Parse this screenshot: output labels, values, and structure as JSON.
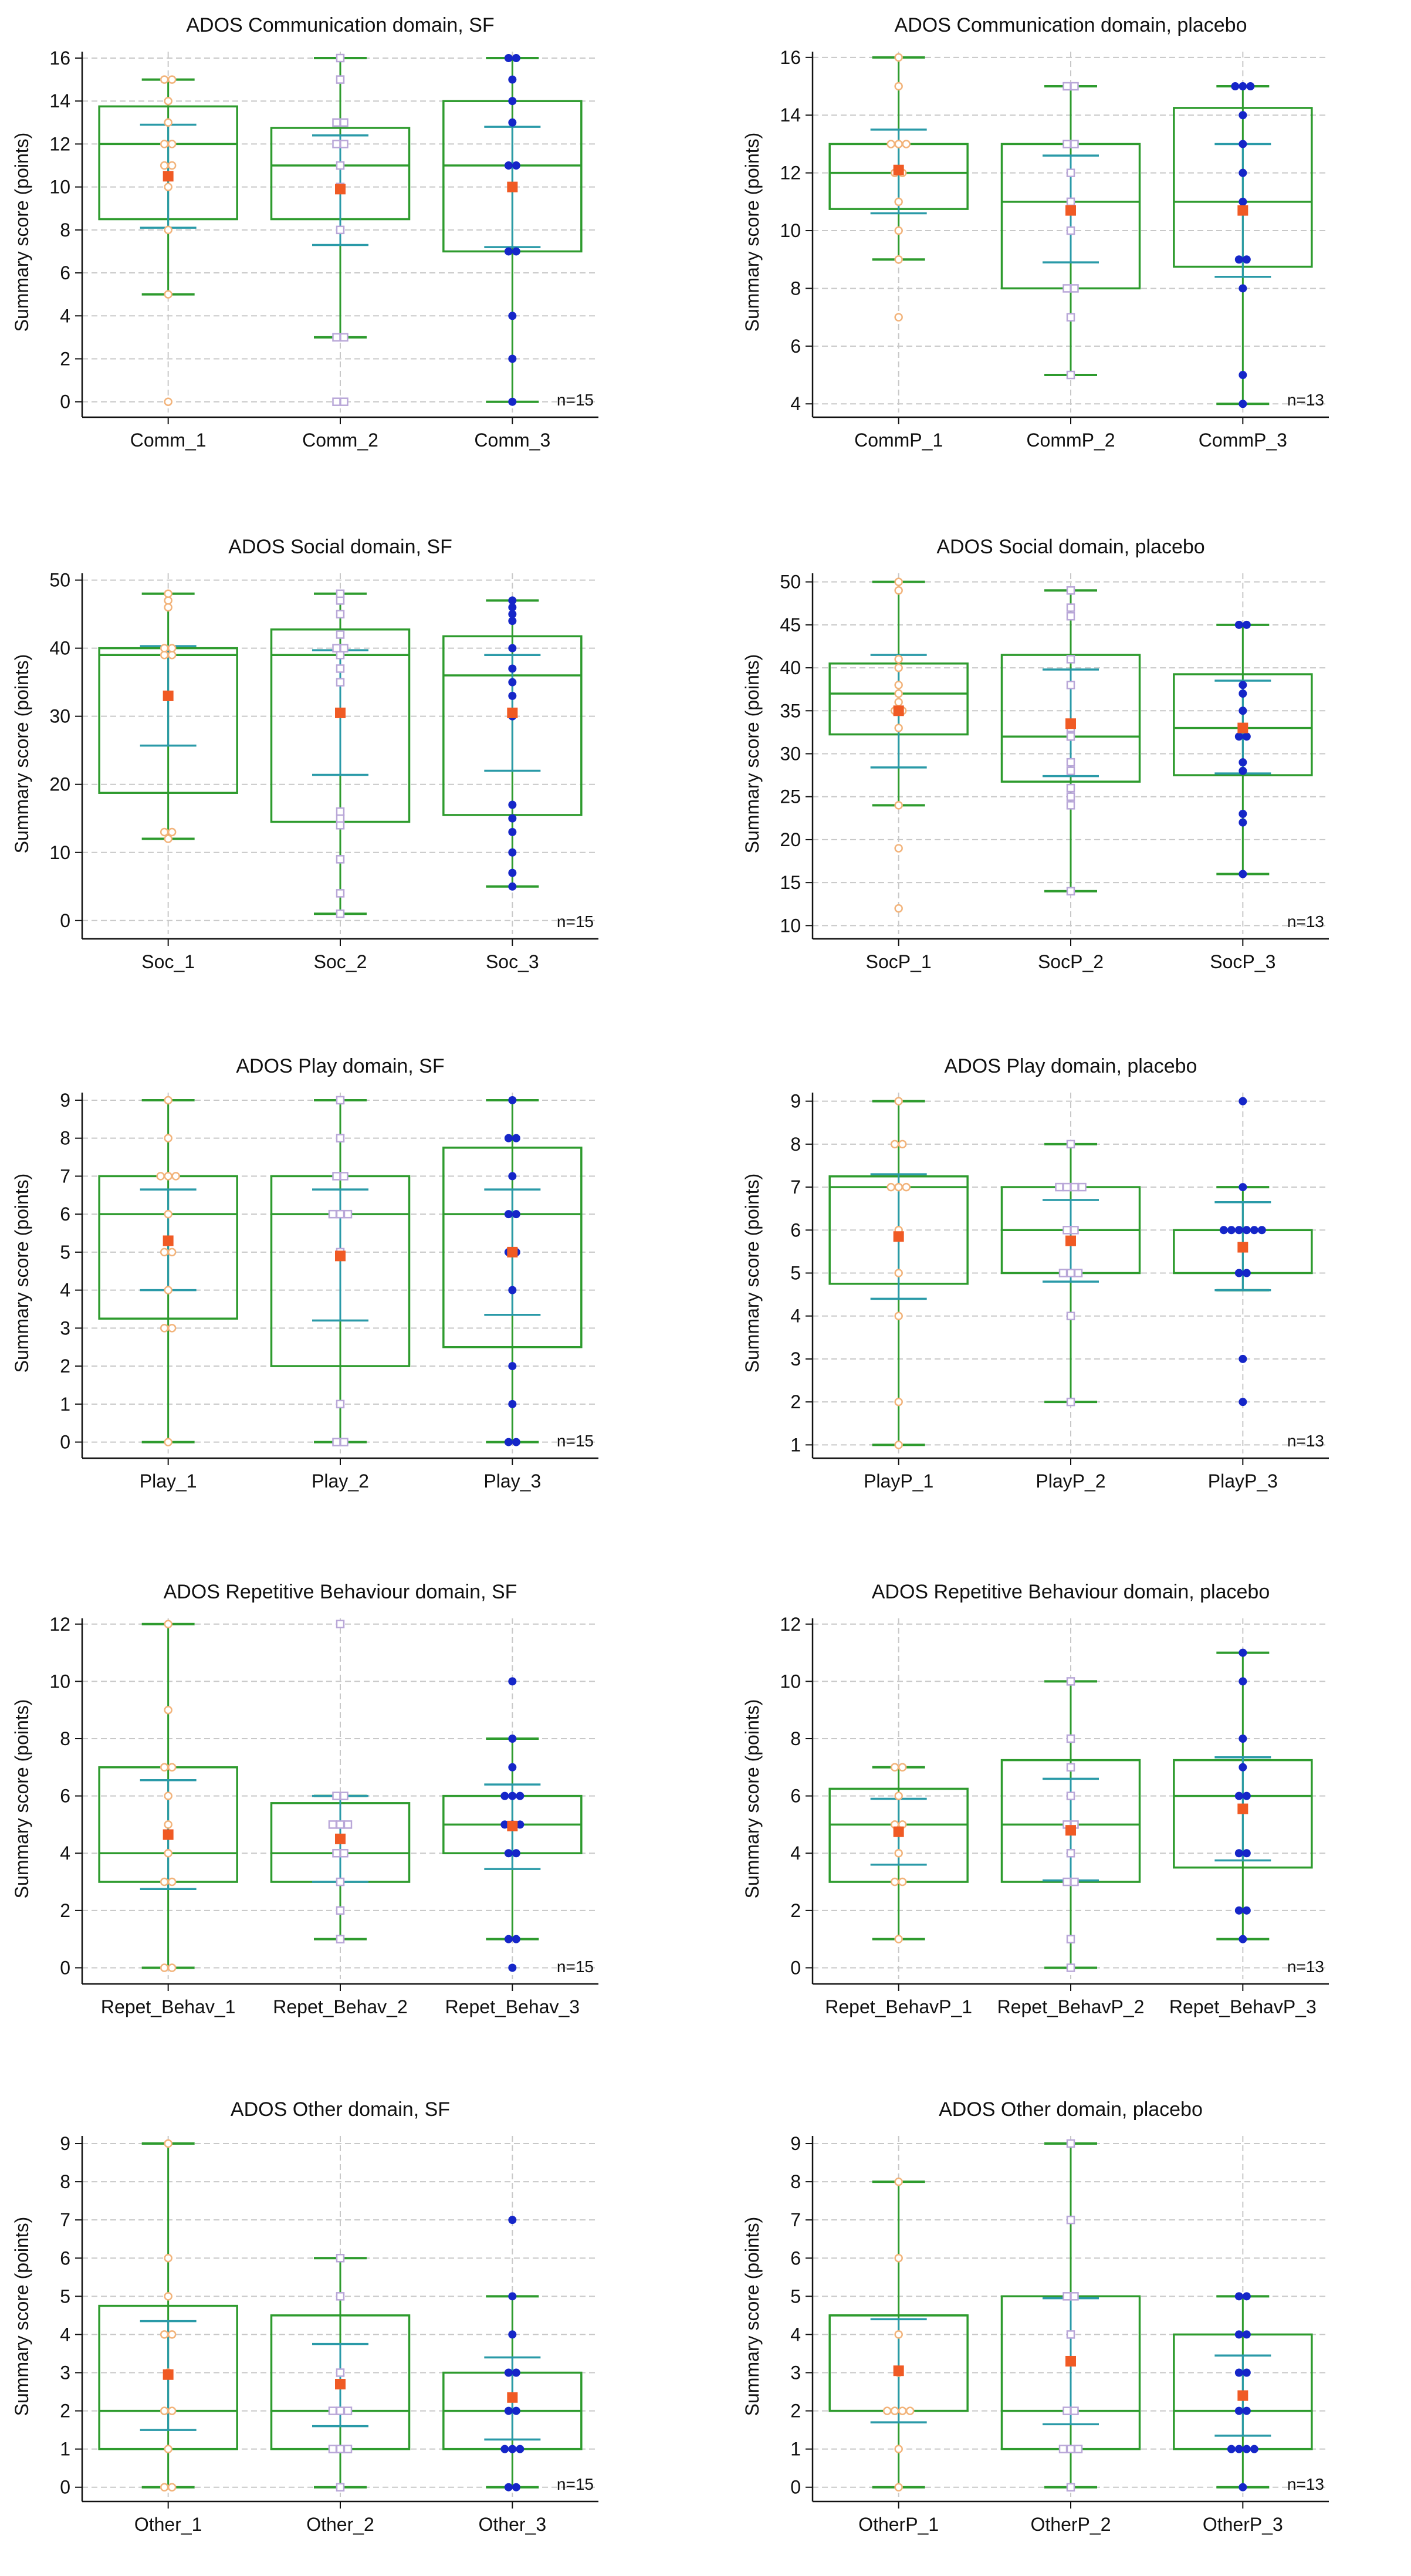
{
  "figure": {
    "ylabel": "Summary score (points)",
    "colors": {
      "box": "#2e9b2e",
      "sd": "#2a9aa8",
      "mean": "#f05a24",
      "grid": "#c8c8c8",
      "axis": "#111111",
      "pt1": "#f2b37a",
      "pt2": "#b9a7d8",
      "pt3": "#1526c8"
    }
  },
  "chart_data": [
    {
      "type": "box",
      "title": "ADOS Communication domain, SF",
      "ylabel": "Summary score (points)",
      "ylim": [
        -0.5,
        16.3
      ],
      "yticks": [
        0,
        2,
        4,
        6,
        8,
        10,
        12,
        14,
        16
      ],
      "n_label": "n=15",
      "categories": [
        "Comm_1",
        "Comm_2",
        "Comm_3"
      ],
      "series": [
        {
          "name": "Comm_1",
          "min": 5,
          "q1": 8.5,
          "median": 12,
          "q3": 13.75,
          "max": 15,
          "mean": 10.5,
          "sd_low": 8.1,
          "sd_high": 12.9,
          "points": [
            0,
            5,
            8,
            10,
            11,
            11,
            12,
            12,
            13,
            14,
            15,
            15
          ]
        },
        {
          "name": "Comm_2",
          "min": 3,
          "q1": 8.5,
          "median": 11,
          "q3": 12.75,
          "max": 16,
          "mean": 9.9,
          "sd_low": 7.3,
          "sd_high": 12.4,
          "points": [
            0,
            0,
            3,
            3,
            8,
            10,
            11,
            12,
            12,
            13,
            13,
            15,
            16
          ]
        },
        {
          "name": "Comm_3",
          "min": 0,
          "q1": 7,
          "median": 11,
          "q3": 14,
          "max": 16,
          "mean": 10,
          "sd_low": 7.2,
          "sd_high": 12.8,
          "points": [
            0,
            2,
            4,
            7,
            7,
            10,
            11,
            11,
            13,
            14,
            15,
            16,
            16
          ]
        }
      ]
    },
    {
      "type": "box",
      "title": "ADOS Communication domain, placebo",
      "ylabel": "Summary score (points)",
      "ylim": [
        3.7,
        16.2
      ],
      "yticks": [
        4,
        6,
        8,
        10,
        12,
        14,
        16
      ],
      "n_label": "n=13",
      "categories": [
        "CommP_1",
        "CommP_2",
        "CommP_3"
      ],
      "series": [
        {
          "name": "CommP_1",
          "min": 9,
          "q1": 10.75,
          "median": 12,
          "q3": 13,
          "max": 16,
          "mean": 12.1,
          "sd_low": 10.6,
          "sd_high": 13.5,
          "points": [
            7,
            9,
            10,
            11,
            12,
            12,
            13,
            13,
            13,
            15,
            16
          ]
        },
        {
          "name": "CommP_2",
          "min": 5,
          "q1": 8,
          "median": 11,
          "q3": 13,
          "max": 15,
          "mean": 10.7,
          "sd_low": 8.9,
          "sd_high": 12.6,
          "points": [
            5,
            7,
            8,
            8,
            10,
            11,
            12,
            13,
            13,
            15,
            15
          ]
        },
        {
          "name": "CommP_3",
          "min": 4,
          "q1": 8.75,
          "median": 11,
          "q3": 14.25,
          "max": 15,
          "mean": 10.7,
          "sd_low": 8.4,
          "sd_high": 13,
          "points": [
            4,
            5,
            8,
            9,
            9,
            11,
            12,
            13,
            14,
            15,
            15,
            15
          ]
        }
      ]
    },
    {
      "type": "box",
      "title": "ADOS Social domain, SF",
      "ylabel": "Summary score (points)",
      "ylim": [
        -2,
        51
      ],
      "yticks": [
        0,
        10,
        20,
        30,
        40,
        50
      ],
      "n_label": "n=15",
      "categories": [
        "Soc_1",
        "Soc_2",
        "Soc_3"
      ],
      "series": [
        {
          "name": "Soc_1",
          "min": 12,
          "q1": 18.75,
          "median": 39,
          "q3": 40,
          "max": 48,
          "mean": 33,
          "sd_low": 25.7,
          "sd_high": 40.3,
          "points": [
            12,
            13,
            13,
            33,
            39,
            39,
            40,
            40,
            46,
            47,
            48
          ]
        },
        {
          "name": "Soc_2",
          "min": 1,
          "q1": 14.5,
          "median": 39,
          "q3": 42.75,
          "max": 48,
          "mean": 30.5,
          "sd_low": 21.4,
          "sd_high": 39.7,
          "points": [
            1,
            4,
            9,
            14,
            15,
            16,
            35,
            37,
            39,
            40,
            40,
            42,
            45,
            47,
            48
          ]
        },
        {
          "name": "Soc_3",
          "min": 5,
          "q1": 15.5,
          "median": 36,
          "q3": 41.75,
          "max": 47,
          "mean": 30.5,
          "sd_low": 22,
          "sd_high": 39,
          "points": [
            5,
            7,
            10,
            13,
            15,
            17,
            30,
            33,
            35,
            37,
            40,
            44,
            45,
            46,
            47
          ]
        }
      ]
    },
    {
      "type": "box",
      "title": "ADOS Social domain, placebo",
      "ylabel": "Summary score (points)",
      "ylim": [
        9,
        51
      ],
      "yticks": [
        10,
        15,
        20,
        25,
        30,
        35,
        40,
        45,
        50
      ],
      "n_label": "n=13",
      "categories": [
        "SocP_1",
        "SocP_2",
        "SocP_3"
      ],
      "series": [
        {
          "name": "SocP_1",
          "min": 24,
          "q1": 32.25,
          "median": 37,
          "q3": 40.5,
          "max": 50,
          "mean": 35,
          "sd_low": 28.4,
          "sd_high": 41.5,
          "points": [
            12,
            19,
            24,
            33,
            35,
            35,
            36,
            37,
            38,
            40,
            41,
            49,
            50
          ]
        },
        {
          "name": "SocP_2",
          "min": 14,
          "q1": 26.75,
          "median": 32,
          "q3": 41.5,
          "max": 49,
          "mean": 33.5,
          "sd_low": 27.4,
          "sd_high": 39.8,
          "points": [
            14,
            24,
            25,
            26,
            28,
            29,
            32,
            33,
            38,
            41,
            46,
            47,
            49
          ]
        },
        {
          "name": "SocP_3",
          "min": 16,
          "q1": 27.5,
          "median": 33,
          "q3": 39.25,
          "max": 45,
          "mean": 33,
          "sd_low": 27.7,
          "sd_high": 38.5,
          "points": [
            16,
            22,
            23,
            28,
            29,
            32,
            32,
            33,
            35,
            37,
            38,
            45,
            45
          ]
        }
      ]
    },
    {
      "type": "box",
      "title": "ADOS Play domain, SF",
      "ylabel": "Summary score (points)",
      "ylim": [
        -0.3,
        9.2
      ],
      "yticks": [
        0,
        1,
        2,
        3,
        4,
        5,
        6,
        7,
        8,
        9
      ],
      "n_label": "n=15",
      "categories": [
        "Play_1",
        "Play_2",
        "Play_3"
      ],
      "series": [
        {
          "name": "Play_1",
          "min": 0,
          "q1": 3.25,
          "median": 6,
          "q3": 7,
          "max": 9,
          "mean": 5.3,
          "sd_low": 4,
          "sd_high": 6.65,
          "points": [
            0,
            3,
            3,
            4,
            5,
            5,
            6,
            7,
            7,
            7,
            8,
            9
          ]
        },
        {
          "name": "Play_2",
          "min": 0,
          "q1": 2,
          "median": 6,
          "q3": 7,
          "max": 9,
          "mean": 4.9,
          "sd_low": 3.2,
          "sd_high": 6.65,
          "points": [
            0,
            0,
            1,
            5,
            6,
            6,
            6,
            7,
            7,
            8,
            9
          ]
        },
        {
          "name": "Play_3",
          "min": 0,
          "q1": 2.5,
          "median": 6,
          "q3": 7.75,
          "max": 9,
          "mean": 5,
          "sd_low": 3.35,
          "sd_high": 6.65,
          "points": [
            0,
            0,
            1,
            2,
            4,
            5,
            5,
            6,
            6,
            7,
            8,
            8,
            9
          ]
        }
      ]
    },
    {
      "type": "box",
      "title": "ADOS Play domain, placebo",
      "ylabel": "Summary score (points)",
      "ylim": [
        0.8,
        9.2
      ],
      "yticks": [
        1,
        2,
        3,
        4,
        5,
        6,
        7,
        8,
        9
      ],
      "n_label": "n=13",
      "categories": [
        "PlayP_1",
        "PlayP_2",
        "PlayP_3"
      ],
      "series": [
        {
          "name": "PlayP_1",
          "min": 1,
          "q1": 4.75,
          "median": 7,
          "q3": 7.25,
          "max": 9,
          "mean": 5.85,
          "sd_low": 4.4,
          "sd_high": 7.3,
          "points": [
            1,
            2,
            4,
            5,
            6,
            7,
            7,
            7,
            8,
            8,
            9
          ]
        },
        {
          "name": "PlayP_2",
          "min": 2,
          "q1": 5,
          "median": 6,
          "q3": 7,
          "max": 8,
          "mean": 5.75,
          "sd_low": 4.8,
          "sd_high": 6.7,
          "points": [
            2,
            4,
            5,
            5,
            5,
            6,
            6,
            7,
            7,
            7,
            7,
            8
          ]
        },
        {
          "name": "PlayP_3",
          "min": 4.6,
          "q1": 5,
          "median": 6,
          "q3": 6,
          "max": 7,
          "mean": 5.6,
          "sd_low": 4.6,
          "sd_high": 6.65,
          "points": [
            2,
            3,
            5,
            5,
            6,
            6,
            6,
            6,
            6,
            6,
            7,
            9
          ]
        }
      ]
    },
    {
      "type": "box",
      "title": "ADOS Repetitive Behaviour domain, SF",
      "ylabel": "Summary score (points)",
      "ylim": [
        -0.4,
        12.2
      ],
      "yticks": [
        0,
        2,
        4,
        6,
        8,
        10,
        12
      ],
      "n_label": "n=15",
      "categories": [
        "Repet_Behav_1",
        "Repet_Behav_2",
        "Repet_Behav_3"
      ],
      "series": [
        {
          "name": "Repet_Behav_1",
          "min": 0,
          "q1": 3,
          "median": 4,
          "q3": 7,
          "max": 12,
          "mean": 4.65,
          "sd_low": 2.75,
          "sd_high": 6.55,
          "points": [
            0,
            0,
            3,
            3,
            4,
            5,
            6,
            7,
            7,
            9,
            12
          ]
        },
        {
          "name": "Repet_Behav_2",
          "min": 1,
          "q1": 3,
          "median": 4,
          "q3": 5.75,
          "max": 6,
          "mean": 4.5,
          "sd_low": 3,
          "sd_high": 6,
          "points": [
            1,
            2,
            3,
            4,
            4,
            5,
            5,
            5,
            6,
            6,
            12
          ]
        },
        {
          "name": "Repet_Behav_3",
          "min": 1,
          "q1": 4,
          "median": 5,
          "q3": 6,
          "max": 8,
          "mean": 4.95,
          "sd_low": 3.45,
          "sd_high": 6.4,
          "points": [
            0,
            1,
            1,
            4,
            4,
            5,
            5,
            5,
            6,
            6,
            6,
            7,
            8,
            10
          ]
        }
      ]
    },
    {
      "type": "box",
      "title": "ADOS Repetitive Behaviour domain, placebo",
      "ylabel": "Summary score (points)",
      "ylim": [
        -0.4,
        12.2
      ],
      "yticks": [
        0,
        2,
        4,
        6,
        8,
        10,
        12
      ],
      "n_label": "n=13",
      "categories": [
        "Repet_BehavP_1",
        "Repet_BehavP_2",
        "Repet_BehavP_3"
      ],
      "series": [
        {
          "name": "Repet_BehavP_1",
          "min": 1,
          "q1": 3,
          "median": 5,
          "q3": 6.25,
          "max": 7,
          "mean": 4.75,
          "sd_low": 3.6,
          "sd_high": 5.9,
          "points": [
            1,
            3,
            3,
            4,
            5,
            5,
            6,
            7,
            7
          ]
        },
        {
          "name": "Repet_BehavP_2",
          "min": 0,
          "q1": 3,
          "median": 5,
          "q3": 7.25,
          "max": 10,
          "mean": 4.8,
          "sd_low": 3.05,
          "sd_high": 6.6,
          "points": [
            0,
            1,
            3,
            3,
            4,
            5,
            5,
            6,
            7,
            8,
            10
          ]
        },
        {
          "name": "Repet_BehavP_3",
          "min": 1,
          "q1": 3.5,
          "median": 6,
          "q3": 7.25,
          "max": 11,
          "mean": 5.55,
          "sd_low": 3.75,
          "sd_high": 7.35,
          "points": [
            1,
            2,
            2,
            4,
            4,
            6,
            6,
            7,
            8,
            10,
            11
          ]
        }
      ]
    },
    {
      "type": "box",
      "title": "ADOS Other domain, SF",
      "ylabel": "Summary score (points)",
      "ylim": [
        -0.25,
        9.2
      ],
      "yticks": [
        0,
        1,
        2,
        3,
        4,
        5,
        6,
        7,
        8,
        9
      ],
      "n_label": "n=15",
      "categories": [
        "Other_1",
        "Other_2",
        "Other_3"
      ],
      "series": [
        {
          "name": "Other_1",
          "min": 0,
          "q1": 1,
          "median": 2,
          "q3": 4.75,
          "max": 9,
          "mean": 2.95,
          "sd_low": 1.5,
          "sd_high": 4.35,
          "points": [
            0,
            0,
            1,
            2,
            2,
            3,
            4,
            4,
            5,
            6,
            9
          ]
        },
        {
          "name": "Other_2",
          "min": 0,
          "q1": 1,
          "median": 2,
          "q3": 4.5,
          "max": 6,
          "mean": 2.7,
          "sd_low": 1.6,
          "sd_high": 3.75,
          "points": [
            0,
            1,
            1,
            1,
            2,
            2,
            2,
            3,
            5,
            6
          ]
        },
        {
          "name": "Other_3",
          "min": 0,
          "q1": 1,
          "median": 2,
          "q3": 3,
          "max": 5,
          "mean": 2.35,
          "sd_low": 1.25,
          "sd_high": 3.4,
          "points": [
            0,
            0,
            1,
            1,
            1,
            2,
            2,
            3,
            3,
            4,
            5,
            7
          ]
        }
      ]
    },
    {
      "type": "box",
      "title": "ADOS Other domain, placebo",
      "ylabel": "Summary score (points)",
      "ylim": [
        -0.25,
        9.2
      ],
      "yticks": [
        0,
        1,
        2,
        3,
        4,
        5,
        6,
        7,
        8,
        9
      ],
      "n_label": "n=13",
      "categories": [
        "OtherP_1",
        "OtherP_2",
        "OtherP_3"
      ],
      "series": [
        {
          "name": "OtherP_1",
          "min": 0,
          "q1": 2,
          "median": 4.5,
          "q3": 4.5,
          "max": 8,
          "mean": 3.05,
          "sd_low": 1.7,
          "sd_high": 4.4,
          "points": [
            0,
            1,
            2,
            2,
            2,
            2,
            3,
            4,
            6,
            8
          ]
        },
        {
          "name": "OtherP_2",
          "min": 0,
          "q1": 1,
          "median": 2,
          "q3": 5,
          "max": 9,
          "mean": 3.3,
          "sd_low": 1.65,
          "sd_high": 4.95,
          "points": [
            0,
            1,
            1,
            1,
            2,
            2,
            4,
            5,
            5,
            7,
            9
          ]
        },
        {
          "name": "OtherP_3",
          "min": 0,
          "q1": 1,
          "median": 2,
          "q3": 4,
          "max": 5,
          "mean": 2.4,
          "sd_low": 1.35,
          "sd_high": 3.45,
          "points": [
            0,
            1,
            1,
            1,
            1,
            2,
            2,
            3,
            3,
            4,
            4,
            5,
            5
          ]
        }
      ]
    }
  ]
}
